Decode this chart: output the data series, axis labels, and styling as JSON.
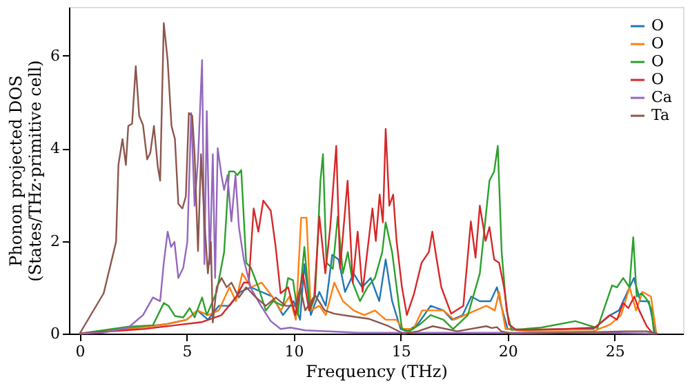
{
  "chart_data": {
    "type": "line",
    "xlabel": "Frequency (THz)",
    "ylabel": "Phonon projected DOS\n(States/THz·primitive cell)",
    "xlim": [
      -0.5,
      28.2
    ],
    "ylim": [
      0,
      7.05
    ],
    "xticks": [
      0,
      5,
      10,
      15,
      20,
      25
    ],
    "yticks": [
      0,
      2,
      4,
      6
    ],
    "grid": false,
    "legend": "top right",
    "line_style": "solid",
    "marker": "none",
    "series": [
      {
        "name": "O",
        "color": "#1f77b4",
        "x": [
          0,
          2,
          4,
          5,
          5.5,
          6,
          6.5,
          7,
          7.5,
          8,
          8.5,
          9,
          9.5,
          10,
          10.3,
          10.5,
          10.8,
          11.2,
          11.5,
          11.8,
          12.1,
          12.4,
          12.8,
          13.2,
          13.6,
          14.0,
          14.3,
          14.6,
          15.0,
          15.3,
          15.8,
          16.4,
          17.0,
          17.4,
          17.9,
          18.3,
          18.7,
          19.2,
          19.5,
          19.7,
          20.0,
          21,
          23,
          24,
          24.8,
          25.2,
          25.6,
          25.9,
          26.2,
          26.6,
          26.9
        ],
        "values": [
          0,
          0.1,
          0.2,
          0.3,
          0.5,
          0.3,
          0.6,
          0.6,
          0.9,
          1.0,
          0.9,
          0.8,
          0.4,
          0.7,
          0.3,
          1.5,
          0.4,
          0.9,
          0.6,
          1.7,
          1.6,
          0.9,
          1.3,
          1.0,
          1.2,
          0.7,
          1.6,
          0.7,
          0.1,
          0.05,
          0.2,
          0.6,
          0.5,
          0.3,
          0.4,
          0.8,
          0.7,
          0.7,
          1.0,
          0.6,
          0.1,
          0.08,
          0.1,
          0.1,
          0.4,
          0.5,
          0.9,
          1.2,
          0.7,
          0.7,
          0
        ]
      },
      {
        "name": "O",
        "color": "#ff7f0e",
        "x": [
          0,
          2,
          4,
          5,
          5.5,
          6,
          6.5,
          7,
          7.3,
          7.6,
          8,
          8.5,
          9,
          9.4,
          9.8,
          10.1,
          10.35,
          10.6,
          10.8,
          11.2,
          11.5,
          11.9,
          12.3,
          12.8,
          13.3,
          13.8,
          14.3,
          14.8,
          15.1,
          15.6,
          16.0,
          16.5,
          17.0,
          17.5,
          18.0,
          18.5,
          19.0,
          19.4,
          19.6,
          19.9,
          21,
          24,
          24.8,
          25.3,
          25.7,
          26.0,
          26.3,
          26.7,
          26.95
        ],
        "values": [
          0,
          0.08,
          0.2,
          0.3,
          0.5,
          0.4,
          0.5,
          1.0,
          0.7,
          1.3,
          1.0,
          1.1,
          0.8,
          0.5,
          0.8,
          0.3,
          2.5,
          2.5,
          0.5,
          0.6,
          0.4,
          1.1,
          0.7,
          0.5,
          0.4,
          0.5,
          0.3,
          0.3,
          0.1,
          0.1,
          0.5,
          0.5,
          0.5,
          0.3,
          0.4,
          0.5,
          0.6,
          0.5,
          0.9,
          0.1,
          0.05,
          0.05,
          0.2,
          0.4,
          1.0,
          0.5,
          0.9,
          0.8,
          0
        ]
      },
      {
        "name": "O",
        "color": "#2ca02c",
        "x": [
          0,
          2.27,
          3.42,
          3.93,
          4.15,
          4.45,
          4.84,
          5.14,
          5.37,
          5.72,
          5.94,
          6.4,
          6.75,
          6.98,
          7.21,
          7.37,
          7.55,
          7.78,
          8.0,
          8.35,
          8.7,
          9.04,
          9.5,
          9.74,
          9.97,
          10.2,
          10.5,
          10.77,
          11.0,
          11.25,
          11.37,
          11.53,
          11.83,
          12.06,
          12.3,
          12.53,
          12.76,
          13.1,
          13.45,
          13.8,
          14.14,
          14.3,
          14.6,
          15.06,
          15.4,
          15.9,
          16.4,
          17.0,
          17.45,
          18.14,
          18.7,
          19.15,
          19.37,
          19.54,
          19.72,
          19.95,
          20.18,
          21.56,
          23.16,
          24.2,
          24.88,
          25.11,
          25.4,
          25.69,
          25.87,
          26.03,
          26.26,
          26.5,
          26.72,
          26.84
        ],
        "values": [
          0,
          0.15,
          0.18,
          0.66,
          0.6,
          0.38,
          0.35,
          0.55,
          0.35,
          0.78,
          0.4,
          0.9,
          1.76,
          3.5,
          3.5,
          3.42,
          3.53,
          1.53,
          1.42,
          1.0,
          0.5,
          0.7,
          0.6,
          1.2,
          1.15,
          0.4,
          1.87,
          0.5,
          0.8,
          3.3,
          3.87,
          1.53,
          1.4,
          2.53,
          1.3,
          1.76,
          1.1,
          0.7,
          1.0,
          1.2,
          1.76,
          2.4,
          1.76,
          0.1,
          0.05,
          0.2,
          0.4,
          0.3,
          0.1,
          0.4,
          1.3,
          3.3,
          3.5,
          4.05,
          1.76,
          0.5,
          0.08,
          0.13,
          0.27,
          0.12,
          1.04,
          1.0,
          1.2,
          1.0,
          2.08,
          0.8,
          0.87,
          0.74,
          0.53,
          0
        ]
      },
      {
        "name": "O",
        "color": "#d62728",
        "x": [
          0,
          3,
          5.72,
          6.63,
          7.32,
          7.67,
          7.9,
          8.13,
          8.35,
          8.58,
          8.93,
          9.16,
          9.39,
          9.74,
          10.08,
          10.43,
          10.72,
          10.96,
          11.2,
          11.48,
          11.71,
          11.99,
          12.17,
          12.52,
          12.76,
          12.99,
          13.22,
          13.68,
          13.84,
          14.02,
          14.17,
          14.3,
          14.47,
          14.65,
          14.81,
          15.06,
          15.29,
          15.63,
          15.98,
          16.32,
          16.48,
          16.67,
          16.9,
          17.36,
          17.93,
          18.28,
          18.5,
          18.7,
          18.97,
          19.15,
          19.37,
          19.6,
          19.83,
          20.06,
          20.4,
          22.7,
          24.08,
          24.77,
          25.11,
          25.4,
          25.64,
          25.92,
          26.15,
          26.5,
          26.79
        ],
        "values": [
          0,
          0.1,
          0.25,
          0.4,
          0.8,
          1.1,
          1.1,
          2.7,
          2.2,
          2.87,
          2.65,
          1.87,
          0.87,
          1.0,
          0.4,
          1.3,
          0.5,
          0.8,
          2.53,
          1.3,
          2.3,
          4.05,
          1.4,
          3.3,
          1.1,
          2.2,
          0.9,
          2.7,
          2.0,
          3.0,
          2.4,
          4.42,
          2.76,
          3.0,
          2.0,
          1.0,
          0.4,
          0.87,
          1.53,
          1.76,
          2.2,
          1.64,
          1.0,
          0.43,
          0.6,
          2.42,
          1.64,
          2.76,
          2.0,
          2.3,
          1.6,
          1.53,
          1.0,
          0.2,
          0.08,
          0.1,
          0.13,
          0.4,
          0.3,
          0.66,
          0.55,
          0.8,
          0.5,
          0.16,
          0
        ]
      },
      {
        "name": "Ca",
        "color": "#9467bd",
        "x": [
          0,
          1.12,
          2.27,
          2.96,
          3.42,
          3.76,
          3.93,
          4.11,
          4.27,
          4.43,
          4.61,
          4.84,
          5.03,
          5.21,
          5.37,
          5.53,
          5.72,
          5.83,
          5.94,
          6.08,
          6.22,
          6.33,
          6.45,
          6.63,
          6.75,
          6.91,
          7.09,
          7.28,
          7.44,
          7.67,
          8.0,
          8.47,
          8.93,
          9.39,
          9.85,
          10.54,
          13,
          17,
          20,
          24,
          27
        ],
        "values": [
          0,
          0.02,
          0.13,
          0.4,
          0.78,
          0.7,
          1.53,
          2.2,
          1.87,
          1.98,
          1.2,
          1.42,
          1.98,
          4.76,
          2.76,
          3.76,
          5.9,
          1.5,
          4.8,
          1.5,
          3.87,
          1.2,
          4.0,
          3.4,
          3.1,
          3.42,
          2.42,
          3.42,
          2.3,
          1.6,
          0.98,
          0.6,
          0.27,
          0.1,
          0.13,
          0.07,
          0.02,
          0.02,
          0.02,
          0.02,
          0
        ]
      },
      {
        "name": "Ta",
        "color": "#8c564b",
        "x": [
          0,
          1.12,
          1.7,
          1.81,
          2.0,
          2.16,
          2.27,
          2.45,
          2.62,
          2.78,
          2.96,
          3.15,
          3.3,
          3.47,
          3.65,
          3.76,
          3.93,
          4.11,
          4.29,
          4.45,
          4.61,
          4.8,
          4.96,
          5.1,
          5.26,
          5.37,
          5.53,
          5.67,
          5.83,
          5.99,
          6.13,
          6.22,
          6.4,
          6.63,
          6.87,
          7.09,
          7.44,
          7.78,
          8.24,
          8.7,
          9.16,
          9.62,
          10.08,
          10.31,
          10.54,
          11.0,
          11.45,
          11.9,
          12.6,
          13.5,
          14.44,
          15.13,
          15.8,
          16.5,
          17.65,
          19.0,
          19.26,
          19.5,
          19.7,
          20.2,
          23,
          25.5,
          26.5,
          27
        ],
        "values": [
          0,
          0.87,
          1.98,
          3.64,
          4.2,
          3.64,
          4.48,
          4.53,
          5.77,
          4.7,
          4.5,
          3.76,
          3.9,
          4.48,
          3.6,
          3.3,
          6.7,
          5.9,
          4.48,
          4.2,
          2.8,
          2.7,
          2.96,
          4.76,
          4.7,
          3.87,
          1.78,
          3.87,
          2.42,
          1.3,
          1.98,
          0.24,
          1.0,
          1.2,
          1.0,
          1.1,
          0.78,
          1.0,
          0.78,
          0.6,
          0.78,
          0.6,
          0.6,
          1.0,
          0.5,
          0.83,
          0.5,
          0.43,
          0.38,
          0.32,
          0.16,
          0,
          0.05,
          0.16,
          0.05,
          0.16,
          0.12,
          0.14,
          0.05,
          0,
          0.02,
          0.05,
          0.05,
          0
        ]
      }
    ]
  }
}
